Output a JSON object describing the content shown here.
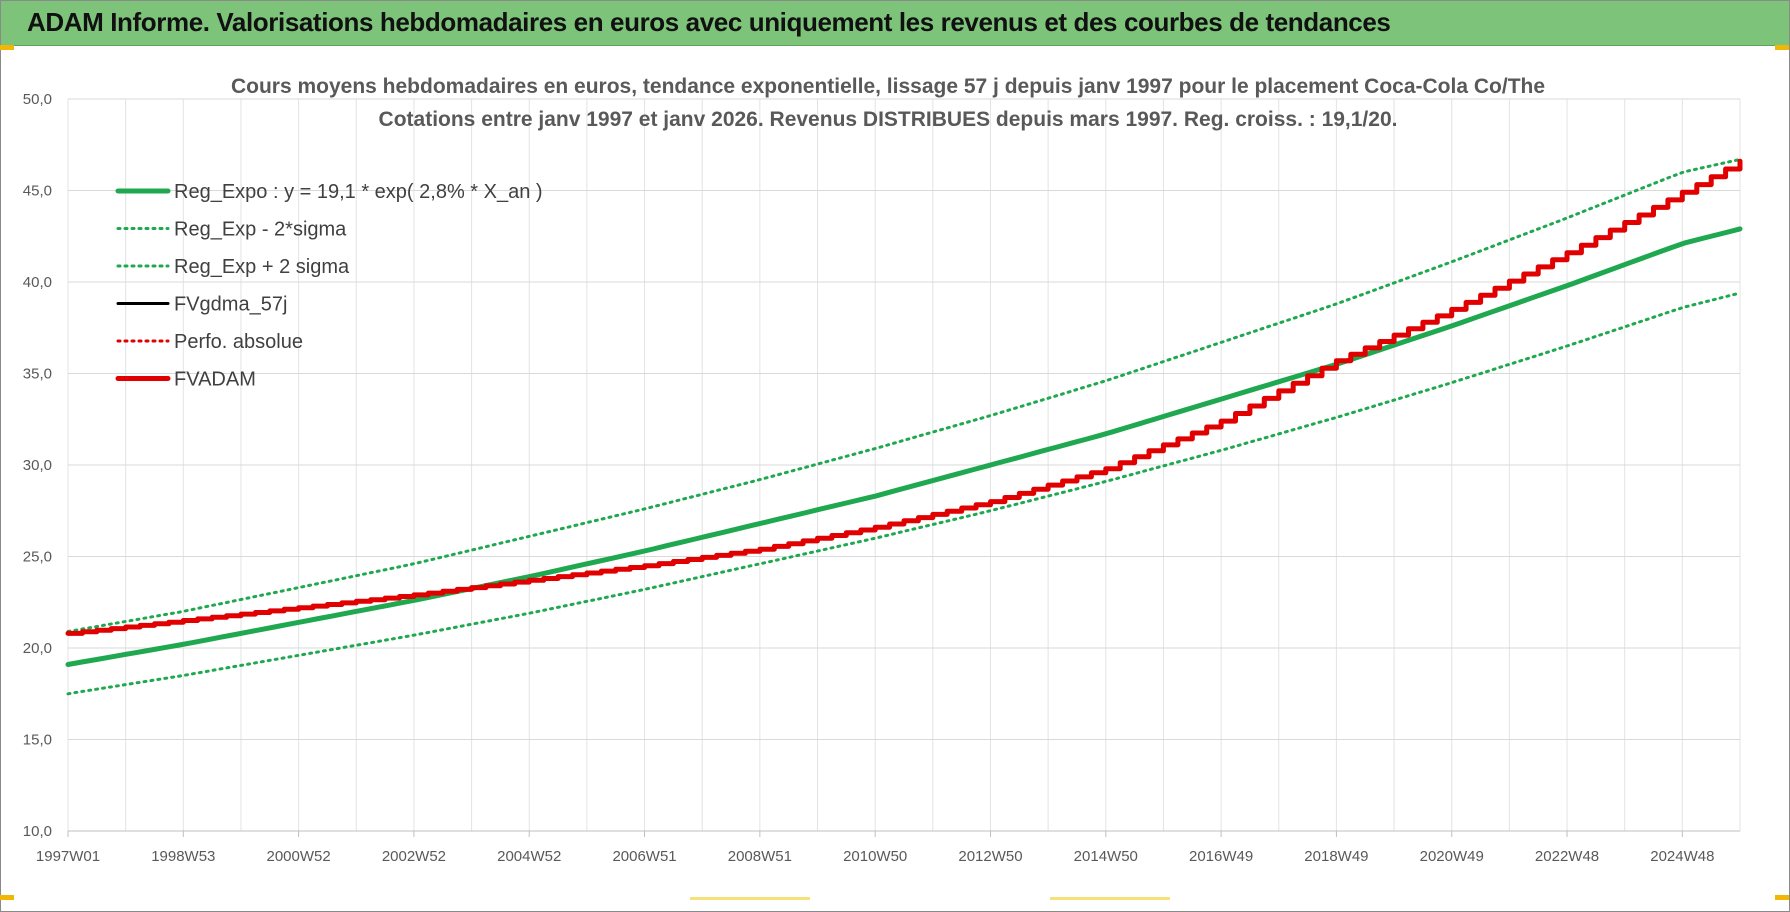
{
  "banner": {
    "title": "ADAM Informe. Valorisations hebdomadaires en euros avec uniquement les revenus et des courbes de tendances",
    "color": "#7dc47a"
  },
  "chart_data": {
    "type": "line",
    "title_lines": [
      "Cours moyens hebdomadaires en euros, tendance exponentielle, lissage 57 j depuis janv 1997 pour le placement Coca-Cola Co/The",
      "Cotations entre janv 1997 et janv 2026. Revenus DISTRIBUES depuis mars 1997. Reg. croiss. : 19,1/20."
    ],
    "xlabel": "",
    "ylabel": "",
    "ylim": [
      10,
      50
    ],
    "xlim": [
      1997.0,
      2026.0
    ],
    "y_ticks": [
      "10,0",
      "15,0",
      "20,0",
      "25,0",
      "30,0",
      "35,0",
      "40,0",
      "45,0",
      "50,0"
    ],
    "x_tick_labels": [
      "1997W01",
      "1998W53",
      "2000W52",
      "2002W52",
      "2004W52",
      "2006W51",
      "2008W51",
      "2010W50",
      "2012W50",
      "2014W50",
      "2016W49",
      "2018W49",
      "2020W49",
      "2022W48",
      "2024W48"
    ],
    "grid": true,
    "legend_position": "top-left",
    "series": [
      {
        "name": "Reg_Expo : y = 19,1 * exp( 2,8% *  X_an )",
        "style": "solid-thick",
        "color": "#1fa84f",
        "x": [
          1997,
          1999,
          2001,
          2003,
          2005,
          2007,
          2009,
          2011,
          2013,
          2015,
          2017,
          2019,
          2021,
          2023,
          2025,
          2026
        ],
        "values": [
          19.1,
          20.2,
          21.4,
          22.6,
          23.9,
          25.3,
          26.8,
          28.3,
          30.0,
          31.7,
          33.6,
          35.5,
          37.6,
          39.8,
          42.1,
          42.9
        ]
      },
      {
        "name": "Reg_Exp - 2*sigma",
        "style": "dotted",
        "color": "#1fa84f",
        "x": [
          1997,
          1999,
          2001,
          2003,
          2005,
          2007,
          2009,
          2011,
          2013,
          2015,
          2017,
          2019,
          2021,
          2023,
          2025,
          2026
        ],
        "values": [
          17.5,
          18.5,
          19.6,
          20.7,
          21.9,
          23.2,
          24.6,
          26.0,
          27.5,
          29.1,
          30.8,
          32.6,
          34.5,
          36.5,
          38.6,
          39.4
        ]
      },
      {
        "name": "Reg_Exp + 2 sigma",
        "style": "dotted",
        "color": "#1fa84f",
        "x": [
          1997,
          1999,
          2001,
          2003,
          2005,
          2007,
          2009,
          2011,
          2013,
          2015,
          2017,
          2019,
          2021,
          2023,
          2025,
          2026
        ],
        "values": [
          20.9,
          22.0,
          23.3,
          24.6,
          26.1,
          27.6,
          29.2,
          30.9,
          32.7,
          34.6,
          36.7,
          38.8,
          41.1,
          43.5,
          46.0,
          46.7
        ]
      },
      {
        "name": "FVgdma_57j",
        "style": "solid",
        "color": "#000000",
        "x": [],
        "values": []
      },
      {
        "name": "Perfo. absolue",
        "style": "dotted",
        "color": "#e00000",
        "x": [],
        "values": []
      },
      {
        "name": "FVADAM",
        "style": "solid-thick",
        "color": "#e00000",
        "x": [
          1997,
          1999,
          2001,
          2003,
          2005,
          2007,
          2009,
          2011,
          2013,
          2015,
          2017,
          2019,
          2021,
          2023,
          2025,
          2026
        ],
        "values": [
          20.8,
          21.5,
          22.2,
          22.9,
          23.7,
          24.5,
          25.4,
          26.6,
          28.0,
          29.8,
          32.4,
          35.7,
          38.5,
          41.6,
          44.9,
          46.6
        ]
      }
    ]
  }
}
